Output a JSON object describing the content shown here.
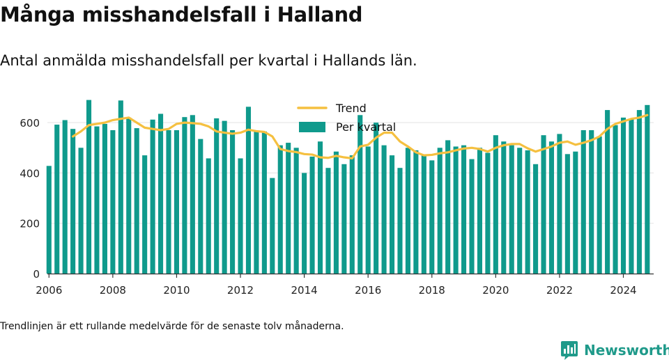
{
  "title": "Många misshandelsfall i Halland",
  "subtitle": "Antal anmälda misshandelsfall per kvartal i Hallands län.",
  "footnote": "Trendlinjen är ett rullande medelvärde för de senaste tolv månaderna.",
  "brand": {
    "name": "Newsworthy",
    "icon": "bar-chart-logo-icon"
  },
  "colors": {
    "bars": "#0f9a8c",
    "trend": "#f5c040",
    "grid": "#e3e3e3",
    "axis": "#333333",
    "brand": "#1f9a8a"
  },
  "chart_data": {
    "type": "bar",
    "title": "",
    "xlabel": "",
    "ylabel": "",
    "ylim": [
      0,
      700
    ],
    "yticks": [
      0,
      200,
      400,
      600
    ],
    "xticks": [
      "2006",
      "2008",
      "2010",
      "2012",
      "2014",
      "2016",
      "2018",
      "2020",
      "2022",
      "2024"
    ],
    "grid": true,
    "legend_position": "top-center",
    "categories": [
      "2006 Q1",
      "2006 Q2",
      "2006 Q3",
      "2006 Q4",
      "2007 Q1",
      "2007 Q2",
      "2007 Q3",
      "2007 Q4",
      "2008 Q1",
      "2008 Q2",
      "2008 Q3",
      "2008 Q4",
      "2009 Q1",
      "2009 Q2",
      "2009 Q3",
      "2009 Q4",
      "2010 Q1",
      "2010 Q2",
      "2010 Q3",
      "2010 Q4",
      "2011 Q1",
      "2011 Q2",
      "2011 Q3",
      "2011 Q4",
      "2012 Q1",
      "2012 Q2",
      "2012 Q3",
      "2012 Q4",
      "2013 Q1",
      "2013 Q2",
      "2013 Q3",
      "2013 Q4",
      "2014 Q1",
      "2014 Q2",
      "2014 Q3",
      "2014 Q4",
      "2015 Q1",
      "2015 Q2",
      "2015 Q3",
      "2015 Q4",
      "2016 Q1",
      "2016 Q2",
      "2016 Q3",
      "2016 Q4",
      "2017 Q1",
      "2017 Q2",
      "2017 Q3",
      "2017 Q4",
      "2018 Q1",
      "2018 Q2",
      "2018 Q3",
      "2018 Q4",
      "2019 Q1",
      "2019 Q2",
      "2019 Q3",
      "2019 Q4",
      "2020 Q1",
      "2020 Q2",
      "2020 Q3",
      "2020 Q4",
      "2021 Q1",
      "2021 Q2",
      "2021 Q3",
      "2021 Q4",
      "2022 Q1",
      "2022 Q2",
      "2022 Q3",
      "2022 Q4",
      "2023 Q1",
      "2023 Q2",
      "2023 Q3",
      "2023 Q4",
      "2024 Q1",
      "2024 Q2",
      "2024 Q3",
      "2024 Q4"
    ],
    "series": [
      {
        "name": "Per kvartal",
        "type": "bar",
        "values": [
          428,
          592,
          610,
          575,
          500,
          690,
          585,
          595,
          570,
          688,
          620,
          578,
          470,
          612,
          635,
          570,
          570,
          622,
          630,
          535,
          458,
          617,
          607,
          570,
          458,
          663,
          565,
          565,
          380,
          510,
          520,
          500,
          400,
          465,
          525,
          420,
          485,
          435,
          470,
          630,
          505,
          600,
          510,
          470,
          420,
          500,
          490,
          470,
          450,
          500,
          530,
          505,
          510,
          455,
          500,
          480,
          550,
          525,
          510,
          500,
          490,
          435,
          550,
          525,
          555,
          475,
          485,
          570,
          570,
          545,
          650,
          590,
          620,
          615,
          650,
          670
        ]
      },
      {
        "name": "Trend",
        "type": "line",
        "x": [
          2006.75,
          2007.0,
          2007.25,
          2007.5,
          2007.75,
          2008.0,
          2008.25,
          2008.5,
          2008.75,
          2009.0,
          2009.25,
          2009.5,
          2009.75,
          2010.0,
          2010.25,
          2010.5,
          2010.75,
          2011.0,
          2011.25,
          2011.5,
          2011.75,
          2012.0,
          2012.25,
          2012.5,
          2012.75,
          2013.0,
          2013.25,
          2013.5,
          2013.75,
          2014.0,
          2014.25,
          2014.5,
          2014.75,
          2015.0,
          2015.25,
          2015.5,
          2015.75,
          2016.0,
          2016.25,
          2016.5,
          2016.75,
          2017.0,
          2017.25,
          2017.5,
          2017.75,
          2018.0,
          2018.25,
          2018.5,
          2018.75,
          2019.0,
          2019.25,
          2019.5,
          2019.75,
          2020.0,
          2020.25,
          2020.5,
          2020.75,
          2021.0,
          2021.25,
          2021.5,
          2021.75,
          2022.0,
          2022.25,
          2022.5,
          2022.75,
          2023.0,
          2023.25,
          2023.5,
          2023.75,
          2024.0,
          2024.25,
          2024.5,
          2024.75
        ],
        "values": [
          545,
          565,
          590,
          595,
          600,
          610,
          615,
          620,
          600,
          580,
          575,
          570,
          575,
          595,
          600,
          598,
          595,
          585,
          565,
          560,
          556,
          560,
          572,
          566,
          563,
          545,
          495,
          487,
          483,
          475,
          473,
          462,
          460,
          468,
          462,
          458,
          505,
          512,
          540,
          560,
          560,
          525,
          505,
          482,
          470,
          472,
          478,
          482,
          490,
          497,
          500,
          495,
          485,
          500,
          510,
          515,
          515,
          498,
          485,
          495,
          505,
          520,
          525,
          512,
          520,
          530,
          545,
          575,
          595,
          605,
          615,
          620,
          630
        ]
      }
    ]
  }
}
